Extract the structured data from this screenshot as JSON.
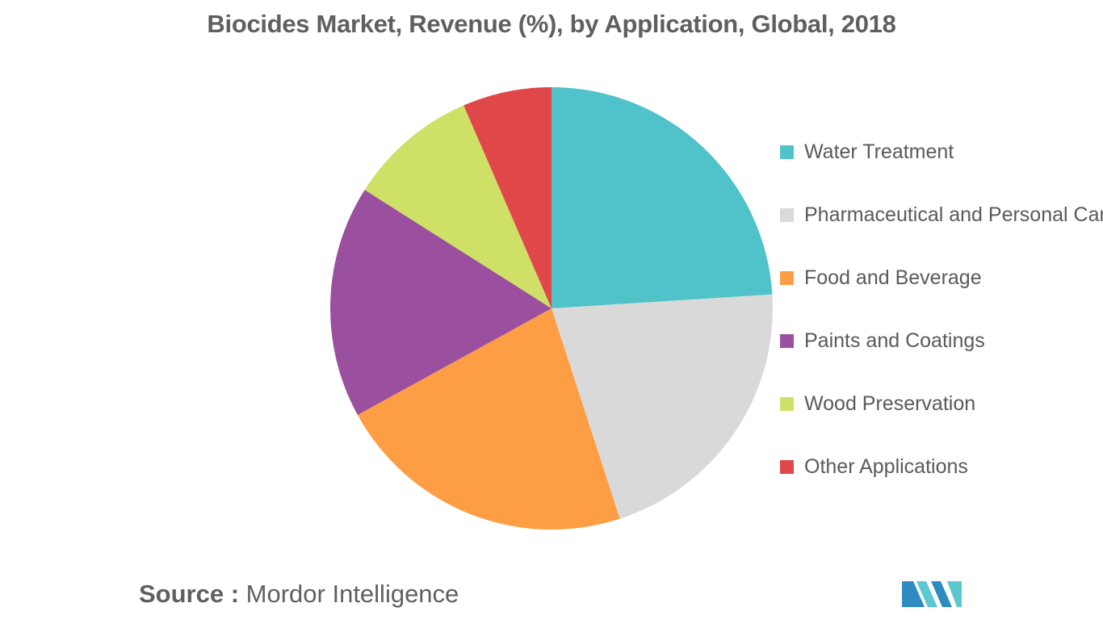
{
  "chart_data": {
    "type": "pie",
    "title": "Biocides Market, Revenue (%), by Application, Global, 2018",
    "slices": [
      {
        "label": "Water Treatment",
        "value": 24,
        "color": "#4fc3c9"
      },
      {
        "label": "Pharmaceutical and Personal Care",
        "value": 21,
        "color": "#d9d9d9"
      },
      {
        "label": "Food and Beverage",
        "value": 22,
        "color": "#fd9e45"
      },
      {
        "label": "Paints and Coatings",
        "value": 17,
        "color": "#9b4f9f"
      },
      {
        "label": "Wood Preservation",
        "value": 9.5,
        "color": "#cfe067"
      },
      {
        "label": "Other Applications",
        "value": 6.5,
        "color": "#df4749"
      }
    ],
    "legend_position": "right"
  },
  "source": {
    "label": "Source :",
    "text": "Mordor Intelligence"
  },
  "logo": {
    "icon": "mordor-intelligence-logo",
    "colors": [
      "#2e8bc0",
      "#5cc8d0"
    ]
  }
}
